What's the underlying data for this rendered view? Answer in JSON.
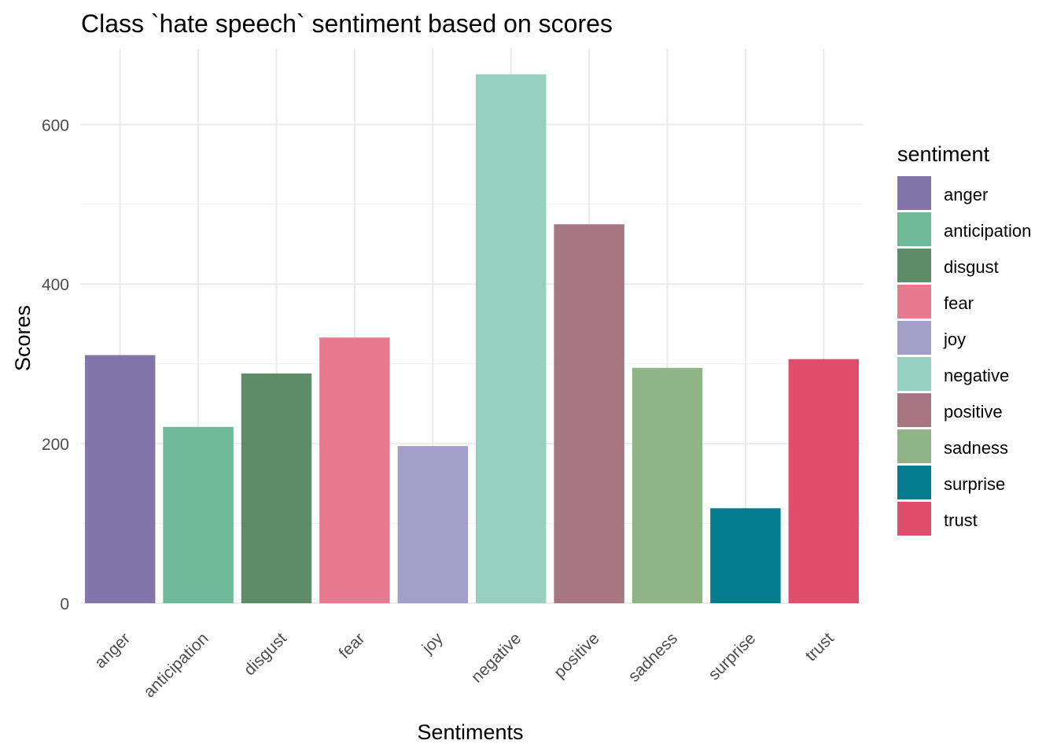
{
  "chart_data": {
    "type": "bar",
    "title": "Class `hate speech` sentiment based on scores",
    "xlabel": "Sentiments",
    "ylabel": "Scores",
    "categories": [
      "anger",
      "anticipation",
      "disgust",
      "fear",
      "joy",
      "negative",
      "positive",
      "sadness",
      "surprise",
      "trust"
    ],
    "values": [
      311,
      221,
      288,
      333,
      197,
      663,
      475,
      295,
      119,
      306
    ],
    "colors": [
      "#8175AA",
      "#6FB899",
      "#5E8B68",
      "#E77A8E",
      "#A49FC8",
      "#95D0BF",
      "#A87582",
      "#8FB486",
      "#027B8E",
      "#E04E6C"
    ],
    "ylim": [
      0,
      700
    ],
    "yticks": [
      0,
      200,
      400,
      600
    ],
    "grid": true,
    "legend": {
      "title": "sentiment",
      "position": "right"
    }
  }
}
